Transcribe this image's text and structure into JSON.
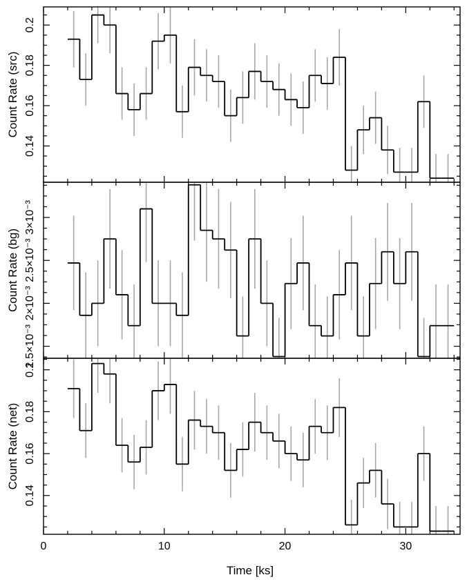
{
  "xlabel": "Time [ks]",
  "chart_data": [
    {
      "type": "step",
      "ylabel": "Count Rate (src)",
      "xlim": [
        0,
        34.5
      ],
      "ylim": [
        0.122,
        0.209
      ],
      "yticks": [
        0.14,
        0.16,
        0.18,
        0.2
      ],
      "ytick_labels": [
        "0.14",
        "0.16",
        "0.18",
        "0.2"
      ],
      "bin_width": 1.0,
      "series": [
        {
          "x": [
            2.5,
            3.5,
            4.5,
            5.5,
            6.5,
            7.5,
            8.5,
            9.5,
            10.5,
            11.5,
            12.5,
            13.5,
            14.5,
            15.5,
            16.5,
            17.5,
            18.5,
            19.5,
            20.5,
            21.5,
            22.5,
            23.5,
            24.5,
            25.5,
            26.5,
            27.5,
            28.5,
            29.5,
            30.5,
            31.5,
            32.5,
            33.5
          ],
          "y": [
            0.193,
            0.173,
            0.205,
            0.2,
            0.166,
            0.158,
            0.166,
            0.192,
            0.195,
            0.157,
            0.179,
            0.175,
            0.172,
            0.155,
            0.164,
            0.177,
            0.172,
            0.168,
            0.163,
            0.159,
            0.175,
            0.171,
            0.184,
            0.128,
            0.148,
            0.154,
            0.138,
            0.127,
            0.127,
            0.162,
            0.124,
            0.124
          ],
          "yerr": [
            0.014,
            0.013,
            0.014,
            0.014,
            0.013,
            0.013,
            0.013,
            0.014,
            0.014,
            0.013,
            0.014,
            0.013,
            0.013,
            0.013,
            0.013,
            0.014,
            0.013,
            0.013,
            0.013,
            0.013,
            0.013,
            0.013,
            0.014,
            0.012,
            0.012,
            0.013,
            0.012,
            0.012,
            0.012,
            0.013,
            0.012,
            0.012
          ]
        }
      ]
    },
    {
      "type": "step",
      "ylabel": "Count Rate (bg)",
      "xlim": [
        0,
        34.5
      ],
      "ylim": [
        0.00136,
        0.00341
      ],
      "yticks": [
        0.0015,
        0.002,
        0.0025,
        0.003
      ],
      "ytick_labels": [
        "1.5×10⁻³",
        "2×10⁻³",
        "2.5×10⁻³",
        "3×10⁻³"
      ],
      "bin_width": 1.0,
      "series": [
        {
          "x": [
            2.5,
            3.5,
            4.5,
            5.5,
            6.5,
            7.5,
            8.5,
            9.5,
            10.5,
            11.5,
            12.5,
            13.5,
            14.5,
            15.5,
            16.5,
            17.5,
            18.5,
            19.5,
            20.5,
            21.5,
            22.5,
            23.5,
            24.5,
            25.5,
            26.5,
            27.5,
            28.5,
            29.5,
            30.5,
            31.5,
            32.5,
            33.5
          ],
          "y": [
            0.00247,
            0.00186,
            0.002,
            0.00275,
            0.0021,
            0.00174,
            0.0031,
            0.002,
            0.002,
            0.00186,
            0.00338,
            0.00285,
            0.00275,
            0.00262,
            0.00162,
            0.00275,
            0.002,
            0.00138,
            0.00223,
            0.00247,
            0.00174,
            0.00162,
            0.0021,
            0.00247,
            0.00162,
            0.00223,
            0.0026,
            0.00223,
            0.0026,
            0.00138,
            0.00174,
            0.00174
          ],
          "yerr": [
            0.00055,
            0.0005,
            0.0005,
            0.00058,
            0.00052,
            0.00048,
            0.00062,
            0.0005,
            0.0005,
            0.0005,
            0.00065,
            0.0006,
            0.00058,
            0.00056,
            0.00046,
            0.00058,
            0.0005,
            0.00045,
            0.00053,
            0.00055,
            0.00048,
            0.00046,
            0.00052,
            0.00055,
            0.00046,
            0.00053,
            0.00057,
            0.00053,
            0.00057,
            0.00045,
            0.00048,
            0.00048
          ]
        }
      ]
    },
    {
      "type": "step",
      "ylabel": "Count Rate (net)",
      "xlim": [
        0,
        34.5
      ],
      "ylim": [
        0.1215,
        0.2055
      ],
      "yticks": [
        0.14,
        0.16,
        0.18,
        0.2
      ],
      "ytick_labels": [
        "0.14",
        "0.16",
        "0.18",
        "0.2"
      ],
      "bin_width": 1.0,
      "series": [
        {
          "x": [
            2.5,
            3.5,
            4.5,
            5.5,
            6.5,
            7.5,
            8.5,
            9.5,
            10.5,
            11.5,
            12.5,
            13.5,
            14.5,
            15.5,
            16.5,
            17.5,
            18.5,
            19.5,
            20.5,
            21.5,
            22.5,
            23.5,
            24.5,
            25.5,
            26.5,
            27.5,
            28.5,
            29.5,
            30.5,
            31.5,
            32.5,
            33.5
          ],
          "y": [
            0.191,
            0.171,
            0.203,
            0.198,
            0.164,
            0.156,
            0.163,
            0.19,
            0.193,
            0.155,
            0.176,
            0.173,
            0.17,
            0.152,
            0.162,
            0.175,
            0.17,
            0.166,
            0.16,
            0.157,
            0.173,
            0.17,
            0.182,
            0.126,
            0.146,
            0.152,
            0.136,
            0.125,
            0.125,
            0.16,
            0.123,
            0.123
          ],
          "yerr": [
            0.014,
            0.013,
            0.014,
            0.014,
            0.013,
            0.013,
            0.013,
            0.014,
            0.014,
            0.013,
            0.014,
            0.013,
            0.013,
            0.013,
            0.013,
            0.014,
            0.013,
            0.013,
            0.013,
            0.013,
            0.013,
            0.013,
            0.014,
            0.012,
            0.012,
            0.013,
            0.012,
            0.012,
            0.012,
            0.013,
            0.012,
            0.012
          ]
        }
      ]
    }
  ],
  "xaxis": {
    "ticks": [
      0,
      10,
      20,
      30
    ],
    "tick_labels": [
      "0",
      "10",
      "20",
      "30"
    ]
  },
  "colors": {
    "step_line": "#000000",
    "error_bar": "#a6a6a6",
    "frame": "#000000"
  }
}
